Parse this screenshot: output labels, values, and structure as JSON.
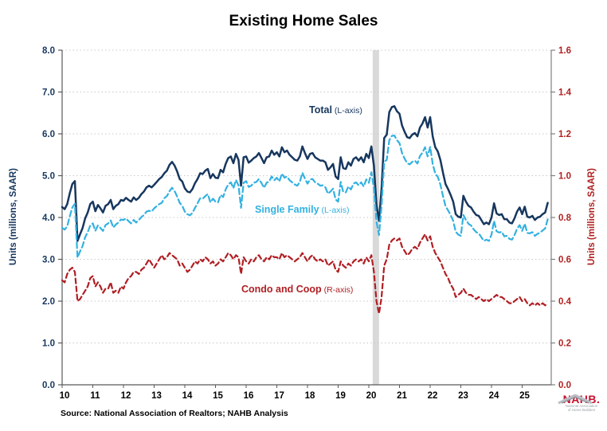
{
  "title": "Existing Home Sales",
  "source_note": "Source: National Association of Realtors; NAHB Analysis",
  "series_labels": {
    "total": {
      "name": "Total",
      "note": " (L-axis)"
    },
    "single_family": {
      "name": "Single Family",
      "note": " (L-axis)"
    },
    "condo": {
      "name": "Condo and Coop",
      "note": " (R-axis)"
    }
  },
  "logo": {
    "name": "NAHB.",
    "sub_line1": "National Association",
    "sub_line2": "of Home Builders"
  },
  "colors": {
    "total_line": "#17375e",
    "single_family_line": "#33b1e1",
    "condo_line": "#b01f24",
    "left_axis_text": "#17375e",
    "right_axis_text": "#b22222",
    "x_axis_text": "#000000",
    "gridline": "#c8c8c8",
    "recession_band": "#d9d9d9",
    "axis_line_left": "#595959",
    "axis_line_right": "#808080"
  },
  "chart_data": {
    "type": "line",
    "x_start": "2010-01",
    "frequency": "monthly",
    "x_tick_labels": [
      "10",
      "11",
      "12",
      "13",
      "14",
      "15",
      "16",
      "17",
      "18",
      "19",
      "20",
      "21",
      "22",
      "23",
      "24",
      "25"
    ],
    "left_axis": {
      "title": "Units (millions, SAAR)",
      "ticks": [
        "8.0",
        "7.0",
        "6.0",
        "5.0",
        "4.0",
        "3.0",
        "2.0",
        "1.0",
        "0.0"
      ],
      "ylim": [
        0,
        8
      ]
    },
    "right_axis": {
      "title": "Units (millions, SAAR)",
      "ticks": [
        "1.6",
        "1.4",
        "1.2",
        "1.0",
        "0.8",
        "0.6",
        "0.4",
        "0.2",
        "0.0"
      ],
      "ylim": [
        0,
        1.6
      ]
    },
    "grid": "horizontal-dotted",
    "recession_band": {
      "start_month_index": 121.5,
      "end_month_index": 124,
      "label": "2020 recession"
    },
    "series": [
      {
        "name": "Total",
        "axis": "left",
        "style": "solid",
        "values": [
          4.25,
          4.2,
          4.32,
          4.58,
          4.8,
          4.87,
          3.44,
          3.6,
          3.75,
          3.98,
          4.12,
          4.32,
          4.38,
          4.15,
          4.3,
          4.22,
          4.12,
          4.28,
          4.32,
          4.42,
          4.2,
          4.28,
          4.32,
          4.42,
          4.4,
          4.47,
          4.42,
          4.38,
          4.48,
          4.42,
          4.47,
          4.56,
          4.62,
          4.72,
          4.76,
          4.72,
          4.78,
          4.85,
          4.92,
          4.97,
          5.06,
          5.12,
          5.26,
          5.33,
          5.24,
          5.1,
          4.92,
          4.86,
          4.7,
          4.62,
          4.6,
          4.68,
          4.82,
          4.92,
          5.06,
          5.04,
          5.12,
          5.16,
          4.94,
          5.04,
          4.95,
          4.94,
          5.14,
          5.08,
          5.28,
          5.42,
          5.46,
          5.3,
          5.52,
          5.38,
          4.76,
          5.44,
          5.46,
          5.31,
          5.36,
          5.42,
          5.46,
          5.54,
          5.42,
          5.3,
          5.44,
          5.46,
          5.6,
          5.5,
          5.56,
          5.46,
          5.68,
          5.56,
          5.6,
          5.5,
          5.44,
          5.38,
          5.36,
          5.46,
          5.7,
          5.54,
          5.4,
          5.52,
          5.54,
          5.44,
          5.4,
          5.36,
          5.36,
          5.32,
          5.14,
          5.2,
          5.28,
          4.98,
          4.92,
          5.44,
          5.18,
          5.16,
          5.32,
          5.24,
          5.4,
          5.44,
          5.36,
          5.44,
          5.32,
          5.52,
          5.42,
          5.7,
          5.24,
          4.3,
          3.92,
          4.7,
          5.9,
          5.98,
          6.52,
          6.64,
          6.66,
          6.54,
          6.48,
          6.2,
          6.05,
          5.92,
          5.9,
          5.98,
          6.02,
          5.94,
          6.15,
          6.25,
          6.4,
          6.15,
          6.4,
          5.94,
          5.68,
          5.58,
          5.38,
          5.08,
          4.8,
          4.68,
          4.54,
          4.38,
          4.08,
          4.02,
          4.0,
          4.52,
          4.38,
          4.28,
          4.24,
          4.14,
          4.06,
          4.04,
          3.94,
          3.84,
          3.88,
          3.84,
          4.0,
          4.34,
          4.1,
          4.06,
          4.08,
          3.96,
          3.96,
          3.88,
          3.86,
          3.98,
          4.14,
          4.24,
          4.08,
          4.26,
          4.02,
          4.0,
          4.04,
          3.94,
          4.0,
          4.02,
          4.08,
          4.12,
          4.35
        ]
      },
      {
        "name": "Single Family",
        "axis": "left",
        "style": "dashed",
        "values": [
          3.75,
          3.71,
          3.79,
          4.03,
          4.24,
          4.33,
          3.04,
          3.19,
          3.32,
          3.53,
          3.65,
          3.81,
          3.86,
          3.68,
          3.81,
          3.75,
          3.68,
          3.82,
          3.86,
          3.93,
          3.76,
          3.83,
          3.88,
          3.95,
          3.94,
          3.98,
          3.91,
          3.86,
          3.94,
          3.88,
          3.94,
          4.01,
          4.06,
          4.14,
          4.16,
          4.14,
          4.22,
          4.27,
          4.32,
          4.35,
          4.46,
          4.51,
          4.63,
          4.71,
          4.63,
          4.5,
          4.35,
          4.28,
          4.14,
          4.08,
          4.05,
          4.11,
          4.23,
          4.34,
          4.46,
          4.45,
          4.51,
          4.56,
          4.36,
          4.45,
          4.38,
          4.36,
          4.54,
          4.49,
          4.67,
          4.79,
          4.84,
          4.7,
          4.9,
          4.77,
          4.23,
          4.83,
          4.87,
          4.73,
          4.76,
          4.83,
          4.85,
          4.92,
          4.82,
          4.71,
          4.83,
          4.86,
          4.98,
          4.89,
          4.95,
          4.86,
          5.05,
          4.95,
          4.98,
          4.89,
          4.84,
          4.79,
          4.76,
          4.85,
          5.07,
          4.93,
          4.81,
          4.91,
          4.92,
          4.84,
          4.81,
          4.76,
          4.77,
          4.72,
          4.57,
          4.62,
          4.69,
          4.43,
          4.38,
          4.85,
          4.61,
          4.6,
          4.74,
          4.67,
          4.81,
          4.84,
          4.77,
          4.84,
          4.74,
          4.91,
          4.83,
          5.08,
          4.7,
          3.9,
          3.58,
          4.28,
          5.33,
          5.38,
          5.85,
          5.95,
          5.96,
          5.85,
          5.78,
          5.54,
          5.41,
          5.3,
          5.27,
          5.33,
          5.36,
          5.29,
          5.47,
          5.55,
          5.68,
          5.46,
          5.69,
          5.28,
          5.05,
          4.97,
          4.79,
          4.52,
          4.27,
          4.17,
          4.06,
          3.92,
          3.66,
          3.59,
          3.56,
          4.06,
          3.94,
          3.85,
          3.81,
          3.72,
          3.65,
          3.62,
          3.53,
          3.44,
          3.47,
          3.44,
          3.59,
          3.92,
          3.67,
          3.64,
          3.66,
          3.55,
          3.56,
          3.49,
          3.47,
          3.58,
          3.73,
          3.82,
          3.68,
          3.85,
          3.63,
          3.62,
          3.65,
          3.56,
          3.61,
          3.64,
          3.69,
          3.74,
          3.96
        ]
      },
      {
        "name": "Condo and Coop",
        "axis": "right",
        "style": "dashed",
        "values": [
          0.5,
          0.49,
          0.53,
          0.55,
          0.56,
          0.54,
          0.4,
          0.41,
          0.43,
          0.45,
          0.47,
          0.51,
          0.52,
          0.47,
          0.49,
          0.47,
          0.44,
          0.46,
          0.46,
          0.49,
          0.44,
          0.45,
          0.44,
          0.47,
          0.46,
          0.49,
          0.51,
          0.52,
          0.54,
          0.54,
          0.53,
          0.55,
          0.56,
          0.58,
          0.6,
          0.58,
          0.56,
          0.58,
          0.6,
          0.62,
          0.6,
          0.61,
          0.63,
          0.62,
          0.61,
          0.6,
          0.57,
          0.58,
          0.56,
          0.54,
          0.55,
          0.57,
          0.59,
          0.58,
          0.6,
          0.59,
          0.61,
          0.6,
          0.58,
          0.59,
          0.57,
          0.58,
          0.6,
          0.59,
          0.61,
          0.63,
          0.62,
          0.6,
          0.62,
          0.61,
          0.53,
          0.61,
          0.59,
          0.58,
          0.6,
          0.59,
          0.61,
          0.62,
          0.6,
          0.59,
          0.61,
          0.6,
          0.62,
          0.61,
          0.61,
          0.6,
          0.63,
          0.61,
          0.62,
          0.61,
          0.6,
          0.59,
          0.6,
          0.61,
          0.63,
          0.61,
          0.59,
          0.61,
          0.62,
          0.6,
          0.59,
          0.6,
          0.59,
          0.6,
          0.57,
          0.58,
          0.59,
          0.55,
          0.54,
          0.59,
          0.57,
          0.56,
          0.58,
          0.57,
          0.59,
          0.6,
          0.59,
          0.6,
          0.58,
          0.61,
          0.59,
          0.62,
          0.54,
          0.4,
          0.34,
          0.42,
          0.57,
          0.6,
          0.67,
          0.69,
          0.7,
          0.69,
          0.7,
          0.66,
          0.64,
          0.62,
          0.63,
          0.65,
          0.66,
          0.65,
          0.68,
          0.7,
          0.72,
          0.69,
          0.71,
          0.66,
          0.63,
          0.61,
          0.59,
          0.56,
          0.53,
          0.51,
          0.48,
          0.46,
          0.42,
          0.43,
          0.44,
          0.46,
          0.44,
          0.43,
          0.43,
          0.42,
          0.41,
          0.42,
          0.41,
          0.4,
          0.41,
          0.4,
          0.41,
          0.42,
          0.43,
          0.42,
          0.42,
          0.41,
          0.4,
          0.39,
          0.39,
          0.4,
          0.41,
          0.42,
          0.4,
          0.41,
          0.39,
          0.38,
          0.39,
          0.38,
          0.39,
          0.38,
          0.39,
          0.38,
          0.39
        ]
      }
    ]
  }
}
